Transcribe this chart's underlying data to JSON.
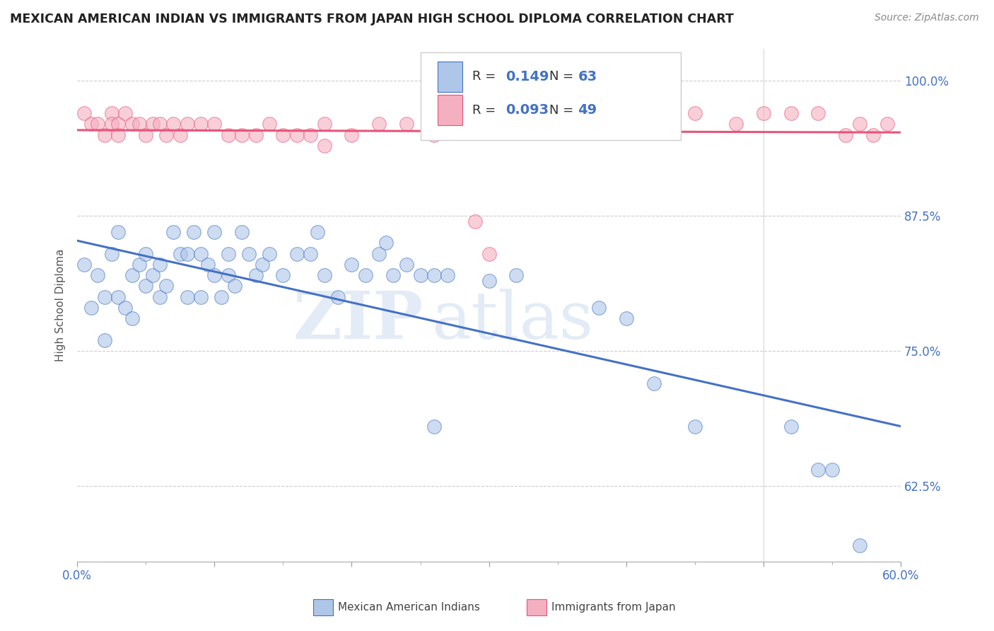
{
  "title": "MEXICAN AMERICAN INDIAN VS IMMIGRANTS FROM JAPAN HIGH SCHOOL DIPLOMA CORRELATION CHART",
  "source": "Source: ZipAtlas.com",
  "ylabel": "High School Diploma",
  "xlim": [
    0.0,
    0.6
  ],
  "ylim": [
    0.555,
    1.03
  ],
  "yticks": [
    0.625,
    0.75,
    0.875,
    1.0
  ],
  "ytick_labels": [
    "62.5%",
    "75.0%",
    "87.5%",
    "100.0%"
  ],
  "xticks": [
    0.0,
    0.1,
    0.2,
    0.3,
    0.4,
    0.5,
    0.6
  ],
  "xtick_labels": [
    "0.0%",
    "",
    "",
    "",
    "",
    "",
    "60.0%"
  ],
  "blue_R": 0.149,
  "blue_N": 63,
  "pink_R": 0.093,
  "pink_N": 49,
  "blue_color": "#aec6e8",
  "pink_color": "#f4afc0",
  "blue_line_color": "#4472c4",
  "pink_line_color": "#e8547a",
  "legend_label_blue": "Mexican American Indians",
  "legend_label_pink": "Immigrants from Japan",
  "blue_x": [
    0.005,
    0.01,
    0.015,
    0.02,
    0.02,
    0.025,
    0.03,
    0.03,
    0.035,
    0.04,
    0.04,
    0.045,
    0.05,
    0.05,
    0.055,
    0.06,
    0.06,
    0.065,
    0.07,
    0.075,
    0.08,
    0.08,
    0.085,
    0.09,
    0.09,
    0.095,
    0.1,
    0.1,
    0.105,
    0.11,
    0.11,
    0.115,
    0.12,
    0.125,
    0.13,
    0.135,
    0.14,
    0.15,
    0.16,
    0.17,
    0.175,
    0.18,
    0.19,
    0.2,
    0.21,
    0.22,
    0.225,
    0.23,
    0.24,
    0.25,
    0.26,
    0.27,
    0.3,
    0.32,
    0.38,
    0.4,
    0.42,
    0.45,
    0.52,
    0.54,
    0.55,
    0.57,
    0.26
  ],
  "blue_y": [
    0.83,
    0.79,
    0.82,
    0.8,
    0.76,
    0.84,
    0.86,
    0.8,
    0.79,
    0.82,
    0.78,
    0.83,
    0.81,
    0.84,
    0.82,
    0.8,
    0.83,
    0.81,
    0.86,
    0.84,
    0.8,
    0.84,
    0.86,
    0.8,
    0.84,
    0.83,
    0.82,
    0.86,
    0.8,
    0.82,
    0.84,
    0.81,
    0.86,
    0.84,
    0.82,
    0.83,
    0.84,
    0.82,
    0.84,
    0.84,
    0.86,
    0.82,
    0.8,
    0.83,
    0.82,
    0.84,
    0.85,
    0.82,
    0.83,
    0.82,
    0.82,
    0.82,
    0.815,
    0.82,
    0.79,
    0.78,
    0.72,
    0.68,
    0.68,
    0.64,
    0.64,
    0.57,
    0.68
  ],
  "pink_x": [
    0.005,
    0.01,
    0.015,
    0.02,
    0.025,
    0.025,
    0.03,
    0.03,
    0.035,
    0.04,
    0.045,
    0.05,
    0.055,
    0.06,
    0.065,
    0.07,
    0.075,
    0.08,
    0.09,
    0.1,
    0.11,
    0.12,
    0.13,
    0.14,
    0.15,
    0.16,
    0.17,
    0.18,
    0.2,
    0.22,
    0.24,
    0.26,
    0.29,
    0.3,
    0.32,
    0.38,
    0.4,
    0.42,
    0.45,
    0.48,
    0.5,
    0.52,
    0.54,
    0.56,
    0.57,
    0.58,
    0.59,
    0.3,
    0.18
  ],
  "pink_y": [
    0.97,
    0.96,
    0.96,
    0.95,
    0.97,
    0.96,
    0.96,
    0.95,
    0.97,
    0.96,
    0.96,
    0.95,
    0.96,
    0.96,
    0.95,
    0.96,
    0.95,
    0.96,
    0.96,
    0.96,
    0.95,
    0.95,
    0.95,
    0.96,
    0.95,
    0.95,
    0.95,
    0.96,
    0.95,
    0.96,
    0.96,
    0.95,
    0.87,
    0.96,
    0.96,
    0.96,
    0.96,
    0.96,
    0.97,
    0.96,
    0.97,
    0.97,
    0.97,
    0.95,
    0.96,
    0.95,
    0.96,
    0.84,
    0.94
  ],
  "watermark_zip": "ZIP",
  "watermark_atlas": "atlas",
  "background_color": "#ffffff",
  "grid_color": "#cccccc"
}
